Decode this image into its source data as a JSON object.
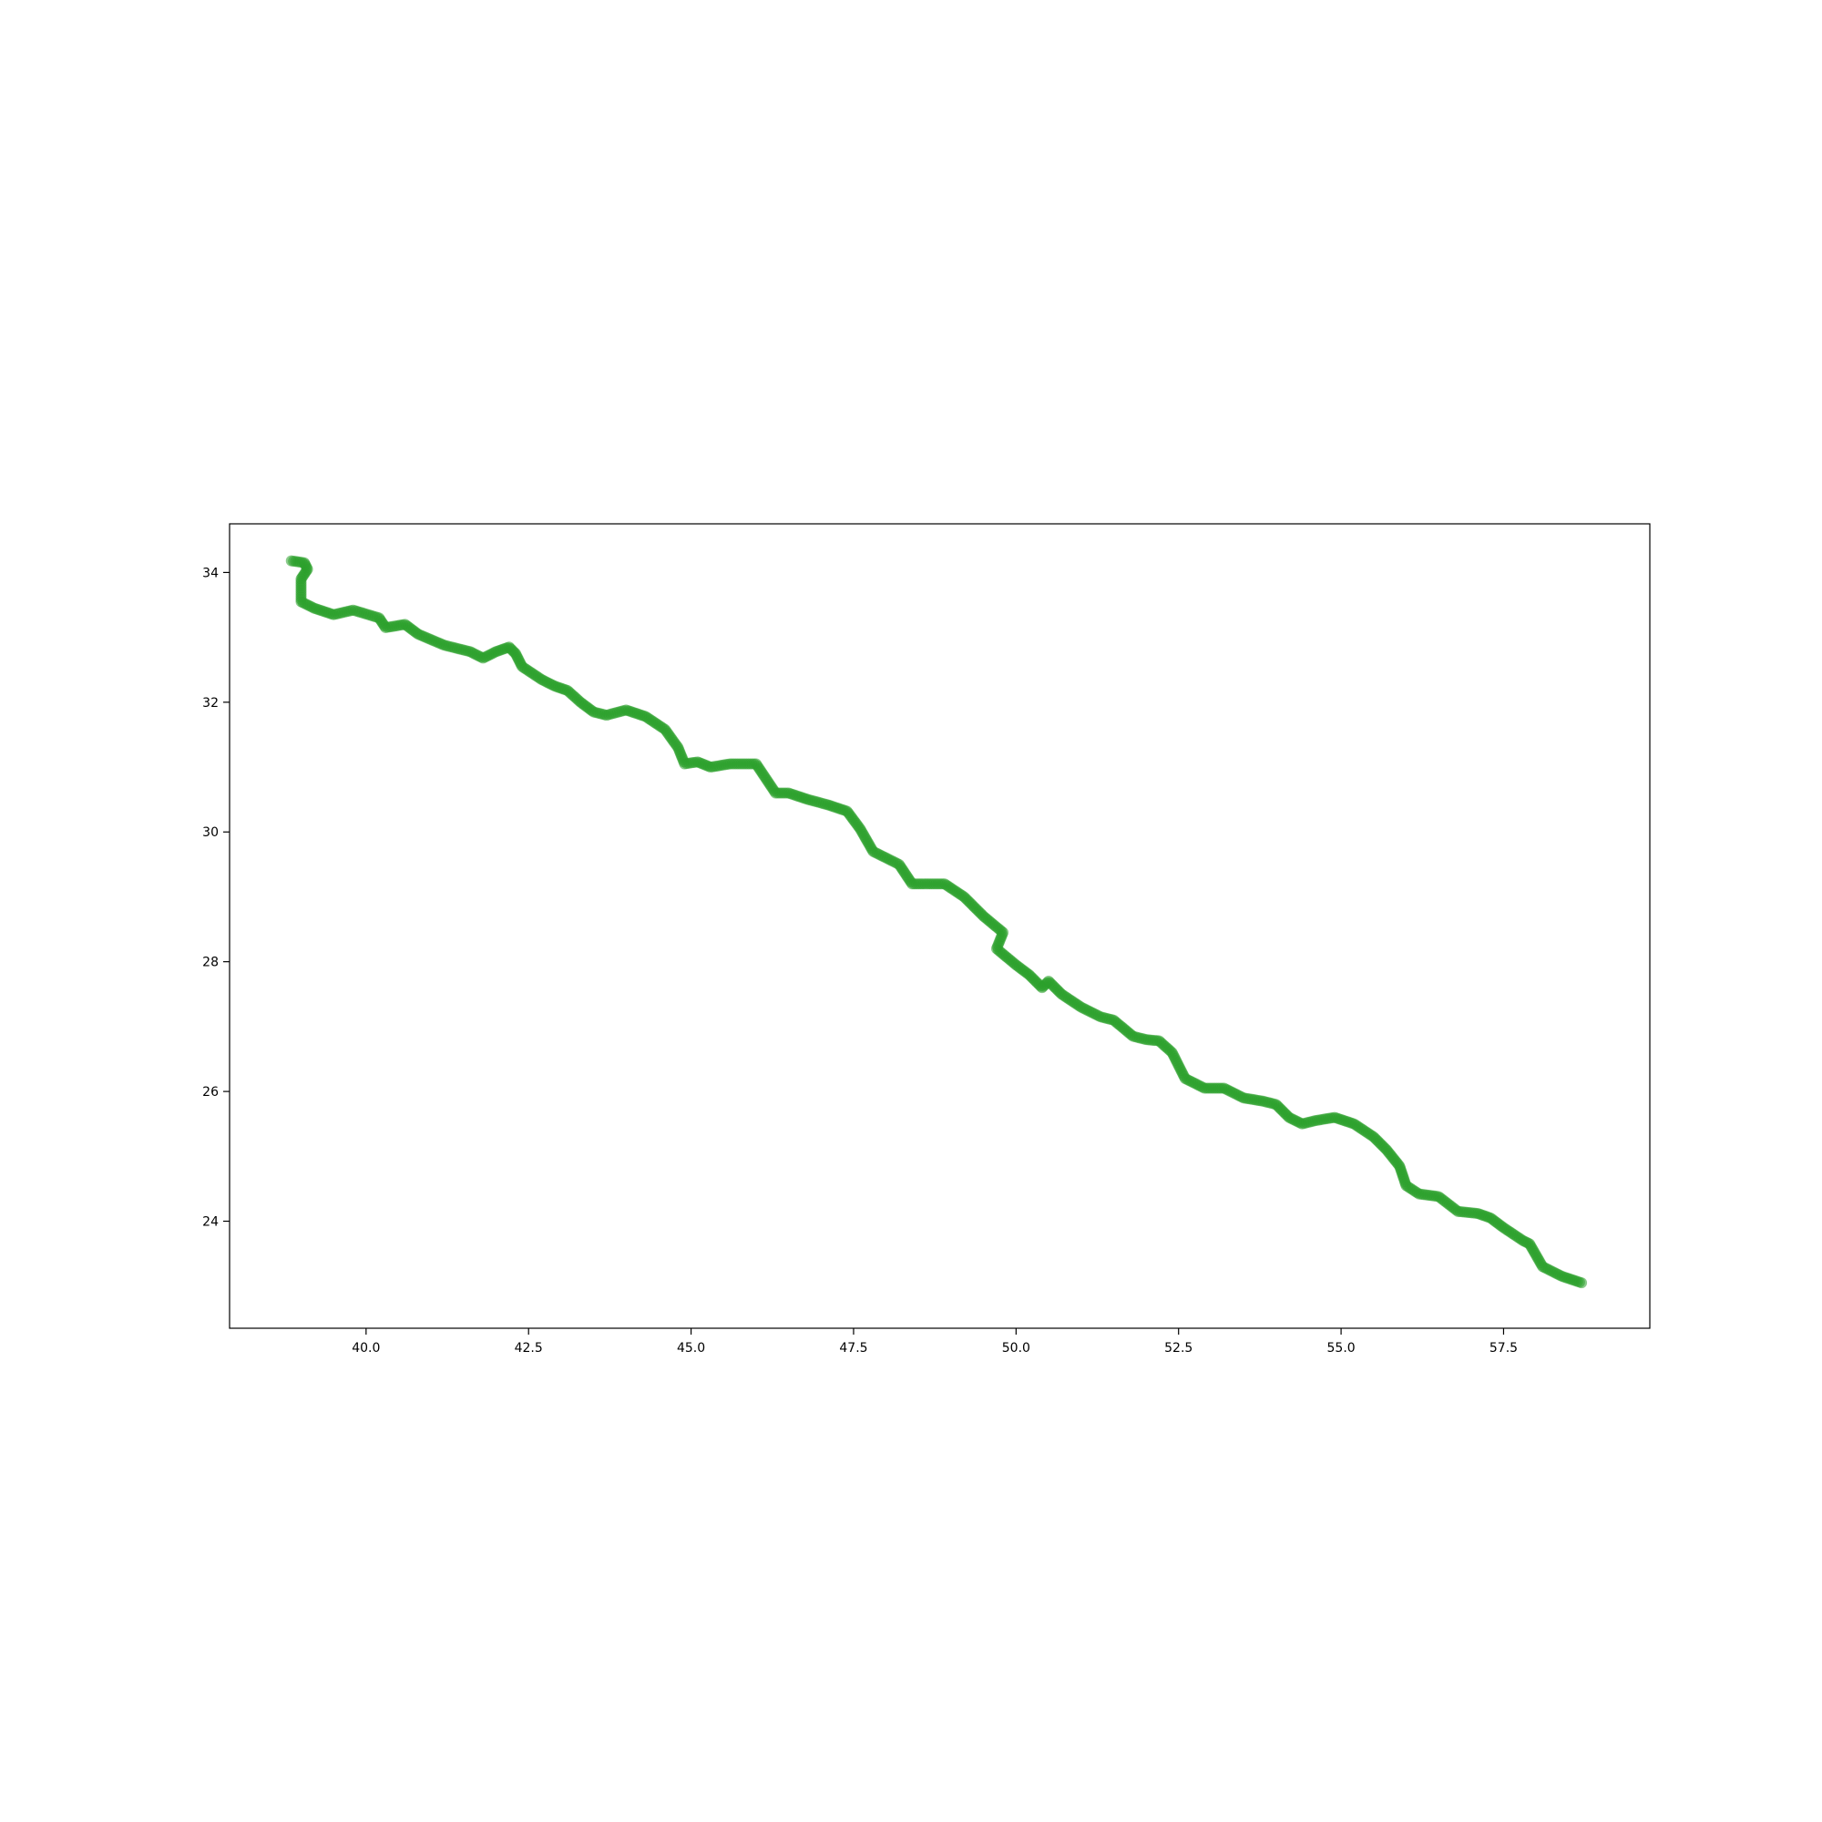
{
  "chart_data": {
    "type": "scatter",
    "title": "",
    "xlabel": "",
    "ylabel": "",
    "xlim": [
      37.9,
      59.75
    ],
    "ylim": [
      22.35,
      34.75
    ],
    "grid": false,
    "legend": "none",
    "x_ticks": [
      {
        "value": 40.0,
        "label": "40.0"
      },
      {
        "value": 42.5,
        "label": "42.5"
      },
      {
        "value": 45.0,
        "label": "45.0"
      },
      {
        "value": 47.5,
        "label": "47.5"
      },
      {
        "value": 50.0,
        "label": "50.0"
      },
      {
        "value": 52.5,
        "label": "52.5"
      },
      {
        "value": 55.0,
        "label": "55.0"
      },
      {
        "value": 57.5,
        "label": "57.5"
      }
    ],
    "y_ticks": [
      {
        "value": 24,
        "label": "24"
      },
      {
        "value": 26,
        "label": "26"
      },
      {
        "value": 28,
        "label": "28"
      },
      {
        "value": 30,
        "label": "30"
      },
      {
        "value": 32,
        "label": "32"
      },
      {
        "value": 34,
        "label": "34"
      }
    ],
    "series": [
      {
        "color": "#2ca02c",
        "marker": "circle",
        "x": [
          38.85,
          39.05,
          39.1,
          39.0,
          39.0,
          39.2,
          39.5,
          39.8,
          40.2,
          40.3,
          40.6,
          40.8,
          41.2,
          41.6,
          41.8,
          42.0,
          42.2,
          42.3,
          42.4,
          42.7,
          42.9,
          43.1,
          43.3,
          43.5,
          43.7,
          44.0,
          44.3,
          44.6,
          44.8,
          44.9,
          45.1,
          45.3,
          45.6,
          46.0,
          46.3,
          46.5,
          46.8,
          47.1,
          47.4,
          47.6,
          47.8,
          48.2,
          48.4,
          48.6,
          48.9,
          49.2,
          49.5,
          49.8,
          49.7,
          50.0,
          50.2,
          50.4,
          50.5,
          50.7,
          51.0,
          51.3,
          51.5,
          51.8,
          52.0,
          52.2,
          52.4,
          52.6,
          52.9,
          53.2,
          53.5,
          53.8,
          54.0,
          54.2,
          54.4,
          54.6,
          54.9,
          55.2,
          55.5,
          55.7,
          55.9,
          56.0,
          56.2,
          56.5,
          56.8,
          57.1,
          57.3,
          57.5,
          57.8,
          57.9,
          58.1,
          58.4,
          58.7
        ],
        "y": [
          34.18,
          34.15,
          34.05,
          33.9,
          33.55,
          33.45,
          33.35,
          33.42,
          33.3,
          33.15,
          33.2,
          33.05,
          32.88,
          32.78,
          32.68,
          32.78,
          32.85,
          32.75,
          32.55,
          32.35,
          32.25,
          32.18,
          32.0,
          31.85,
          31.8,
          31.88,
          31.78,
          31.58,
          31.3,
          31.05,
          31.08,
          31.0,
          31.05,
          31.05,
          30.6,
          30.6,
          30.5,
          30.42,
          30.32,
          30.05,
          29.7,
          29.5,
          29.2,
          29.2,
          29.2,
          29.0,
          28.7,
          28.45,
          28.2,
          27.95,
          27.8,
          27.6,
          27.7,
          27.5,
          27.3,
          27.15,
          27.1,
          26.85,
          26.8,
          26.78,
          26.6,
          26.2,
          26.05,
          26.05,
          25.9,
          25.85,
          25.8,
          25.6,
          25.5,
          25.55,
          25.6,
          25.5,
          25.3,
          25.1,
          24.85,
          24.55,
          24.42,
          24.38,
          24.15,
          24.12,
          24.05,
          23.9,
          23.7,
          23.65,
          23.3,
          23.15,
          23.05
        ]
      }
    ]
  }
}
